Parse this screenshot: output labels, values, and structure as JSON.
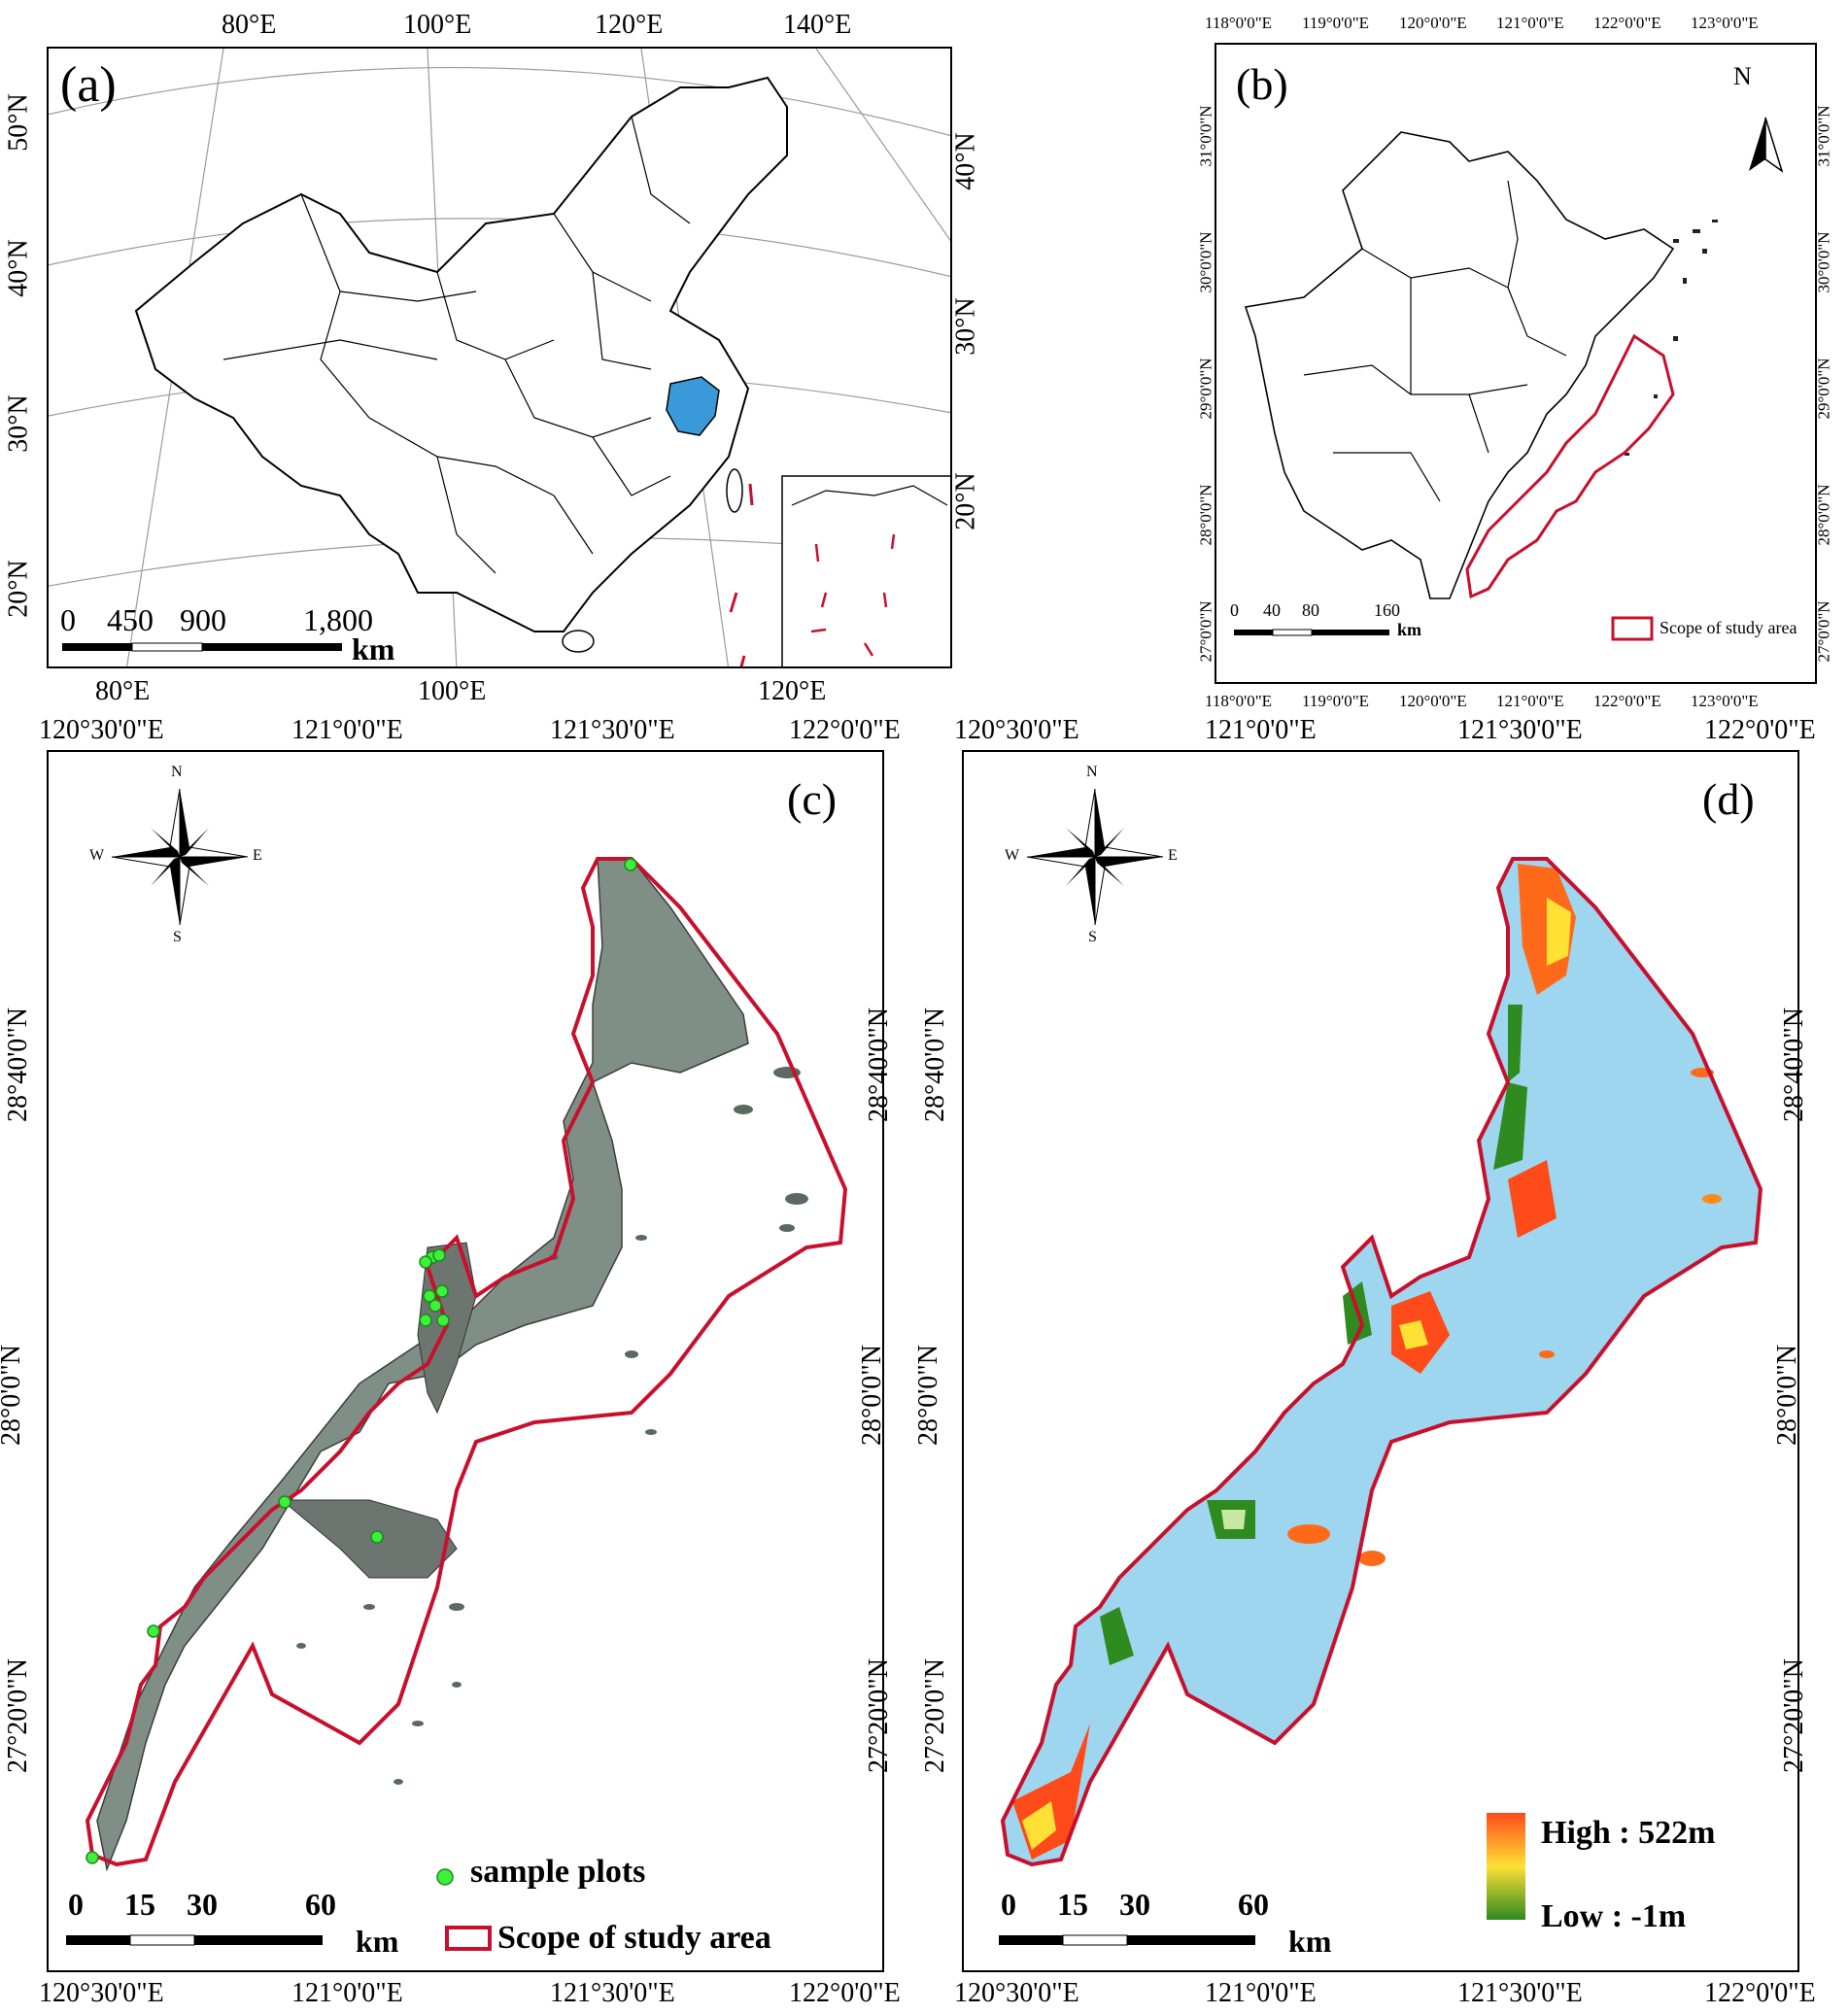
{
  "panels": {
    "a": {
      "label": "(a)",
      "top_ticks": [
        "80°E",
        "100°E",
        "120°E",
        "140°E"
      ],
      "bottom_ticks": [
        "80°E",
        "100°E",
        "120°E"
      ],
      "left_ticks": [
        "50°N",
        "40°N",
        "30°N",
        "20°N"
      ],
      "right_ticks": [
        "40°N",
        "30°N",
        "20°N"
      ],
      "scalebar": {
        "ticks": [
          "0",
          "450",
          "900",
          "1,800"
        ],
        "unit": "km"
      },
      "highlight_color": "#3a9ad9"
    },
    "b": {
      "label": "(b)",
      "top_ticks": [
        "118°0'0\"E",
        "119°0'0\"E",
        "120°0'0\"E",
        "121°0'0\"E",
        "122°0'0\"E",
        "123°0'0\"E"
      ],
      "bottom_ticks": [
        "118°0'0\"E",
        "119°0'0\"E",
        "120°0'0\"E",
        "121°0'0\"E",
        "122°0'0\"E",
        "123°0'0\"E"
      ],
      "left_ticks": [
        "31°0'0\"N",
        "30°0'0\"N",
        "29°0'0\"N",
        "28°0'0\"N",
        "27°0'0\"N"
      ],
      "right_ticks": [
        "31°0'0\"N",
        "30°0'0\"N",
        "29°0'0\"N",
        "28°0'0\"N",
        "27°0'0\"N"
      ],
      "north": "N",
      "scalebar": {
        "ticks": [
          "0",
          "40",
          "80",
          "160"
        ],
        "unit": "km"
      },
      "legend": "Scope of study area"
    },
    "c": {
      "label": "(c)",
      "top_ticks": [
        "120°30'0\"E",
        "121°0'0\"E",
        "121°30'0\"E",
        "122°0'0\"E"
      ],
      "bottom_ticks": [
        "120°30'0\"E",
        "121°0'0\"E",
        "121°30'0\"E",
        "122°0'0\"E"
      ],
      "left_ticks": [
        "28°40'0\"N",
        "28°0'0\"N",
        "27°20'0\"N"
      ],
      "right_ticks": [
        "28°40'0\"N",
        "28°0'0\"N",
        "27°20'0\"N"
      ],
      "compass": {
        "n": "N",
        "s": "S",
        "e": "E",
        "w": "W"
      },
      "scalebar": {
        "ticks": [
          "0",
          "15",
          "30",
          "60"
        ],
        "unit": "km"
      },
      "legend": {
        "points": "sample plots",
        "area": "Scope of study area"
      }
    },
    "d": {
      "label": "(d)",
      "top_ticks": [
        "120°30'0\"E",
        "121°0'0\"E",
        "121°30'0\"E",
        "122°0'0\"E"
      ],
      "bottom_ticks": [
        "120°30'0\"E",
        "121°0'0\"E",
        "121°30'0\"E",
        "122°0'0\"E"
      ],
      "left_ticks": [
        "28°40'0\"N",
        "28°0'0\"N",
        "27°20'0\"N"
      ],
      "right_ticks": [
        "28°40'0\"N",
        "28°0'0\"N",
        "27°20'0\"N"
      ],
      "compass": {
        "n": "N",
        "s": "S",
        "e": "E",
        "w": "W"
      },
      "scalebar": {
        "ticks": [
          "0",
          "15",
          "30",
          "60"
        ],
        "unit": "km"
      },
      "legend": {
        "high": "High : 522m",
        "low": "Low : -1m"
      },
      "colors": {
        "water": "#9dd6ee",
        "high": "#ff4a1a",
        "mid": "#ffe135",
        "low": "#2f8a1f"
      }
    }
  }
}
